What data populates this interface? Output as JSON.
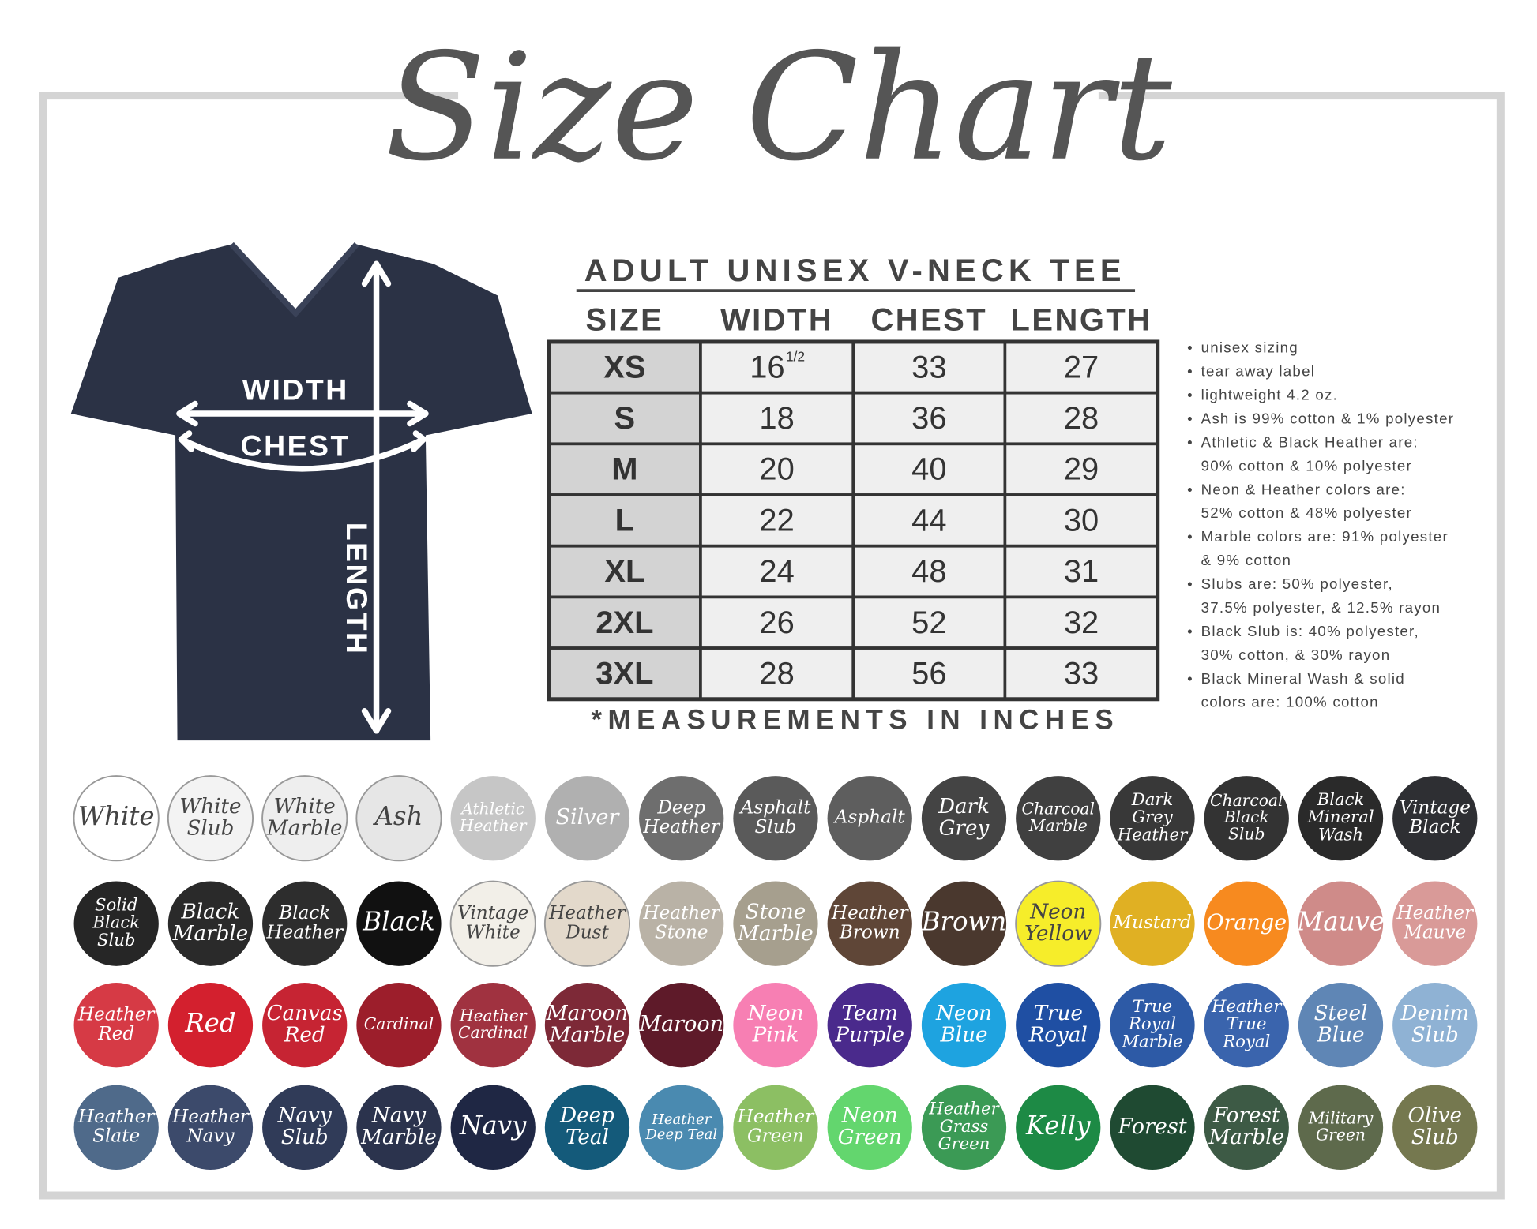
{
  "title": "Size Chart",
  "shirt": {
    "width_label": "WIDTH",
    "chest_label": "CHEST",
    "length_label": "LENGTH"
  },
  "table": {
    "heading": "ADULT UNISEX V-NECK TEE",
    "columns": [
      "SIZE",
      "WIDTH",
      "CHEST",
      "LENGTH"
    ],
    "rows": [
      {
        "size": "XS",
        "width": "16",
        "width_fraction": "1/2",
        "chest": "33",
        "length": "27"
      },
      {
        "size": "S",
        "width": "18",
        "chest": "36",
        "length": "28"
      },
      {
        "size": "M",
        "width": "20",
        "chest": "40",
        "length": "29"
      },
      {
        "size": "L",
        "width": "22",
        "chest": "44",
        "length": "30"
      },
      {
        "size": "XL",
        "width": "24",
        "chest": "48",
        "length": "31"
      },
      {
        "size": "2XL",
        "width": "26",
        "chest": "52",
        "length": "32"
      },
      {
        "size": "3XL",
        "width": "28",
        "chest": "56",
        "length": "33"
      }
    ],
    "footnote": "*MEASUREMENTS IN INCHES"
  },
  "notes": [
    [
      "unisex sizing"
    ],
    [
      "tear away label"
    ],
    [
      "lightweight 4.2 oz."
    ],
    [
      "Ash is 99% cotton & 1% polyester"
    ],
    [
      "Athletic & Black Heather are:",
      "90% cotton & 10% polyester"
    ],
    [
      "Neon & Heather colors are:",
      "52% cotton & 48% polyester"
    ],
    [
      "Marble colors are: 91% polyester",
      "& 9% cotton"
    ],
    [
      "Slubs are: 50% polyester,",
      "37.5% polyester, & 12.5% rayon"
    ],
    [
      "Black Slub is: 40% polyester,",
      "30% cotton, & 30% rayon"
    ],
    [
      "Black Mineral Wash & solid",
      "colors are: 100% cotton"
    ]
  ],
  "swatches": [
    {
      "lines": [
        "White"
      ],
      "color": "#ffffff"
    },
    {
      "lines": [
        "White",
        "Slub"
      ],
      "color": "#f3f3f3"
    },
    {
      "lines": [
        "White",
        "Marble"
      ],
      "color": "#eeeeee"
    },
    {
      "lines": [
        "Ash"
      ],
      "color": "#e6e6e6"
    },
    {
      "lines": [
        "Athletic",
        "Heather"
      ],
      "color": "#c6c6c6"
    },
    {
      "lines": [
        "Silver"
      ],
      "color": "#b0b0b0"
    },
    {
      "lines": [
        "Deep",
        "Heather"
      ],
      "color": "#6e6e6e"
    },
    {
      "lines": [
        "Asphalt",
        "Slub"
      ],
      "color": "#5a5a5a"
    },
    {
      "lines": [
        "Asphalt"
      ],
      "color": "#5e5e5e"
    },
    {
      "lines": [
        "Dark",
        "Grey"
      ],
      "color": "#444444"
    },
    {
      "lines": [
        "Charcoal",
        "Marble"
      ],
      "color": "#404040"
    },
    {
      "lines": [
        "Dark",
        "Grey",
        "Heather"
      ],
      "color": "#383838"
    },
    {
      "lines": [
        "Charcoal",
        "Black",
        "Slub"
      ],
      "color": "#333333"
    },
    {
      "lines": [
        "Black",
        "Mineral",
        "Wash"
      ],
      "color": "#2a2a2a"
    },
    {
      "lines": [
        "Vintage",
        "Black"
      ],
      "color": "#2e2f33"
    },
    {
      "lines": [
        "Solid",
        "Black",
        "Slub"
      ],
      "color": "#262626"
    },
    {
      "lines": [
        "Black",
        "Marble"
      ],
      "color": "#2a2a2a"
    },
    {
      "lines": [
        "Black",
        "Heather"
      ],
      "color": "#2d2d2d"
    },
    {
      "lines": [
        "Black"
      ],
      "color": "#111111"
    },
    {
      "lines": [
        "Vintage",
        "White"
      ],
      "color": "#f2efe8"
    },
    {
      "lines": [
        "Heather",
        "Dust"
      ],
      "color": "#e3d9cb"
    },
    {
      "lines": [
        "Heather",
        "Stone"
      ],
      "color": "#b9b2a6"
    },
    {
      "lines": [
        "Stone",
        "Marble"
      ],
      "color": "#a69f8e"
    },
    {
      "lines": [
        "Heather",
        "Brown"
      ],
      "color": "#5f4637"
    },
    {
      "lines": [
        "Brown"
      ],
      "color": "#4a382e"
    },
    {
      "lines": [
        "Neon",
        "Yellow"
      ],
      "color": "#f6ed2a"
    },
    {
      "lines": [
        "Mustard"
      ],
      "color": "#e0b023"
    },
    {
      "lines": [
        "Orange"
      ],
      "color": "#f78a1f"
    },
    {
      "lines": [
        "Mauve"
      ],
      "color": "#cf8b89"
    },
    {
      "lines": [
        "Heather",
        "Mauve"
      ],
      "color": "#d99a98"
    },
    {
      "lines": [
        "Heather",
        "Red"
      ],
      "color": "#d63a45"
    },
    {
      "lines": [
        "Red"
      ],
      "color": "#d3202e"
    },
    {
      "lines": [
        "Canvas",
        "Red"
      ],
      "color": "#c62433"
    },
    {
      "lines": [
        "Cardinal"
      ],
      "color": "#9c1e2b"
    },
    {
      "lines": [
        "Heather",
        "Cardinal"
      ],
      "color": "#a03240"
    },
    {
      "lines": [
        "Maroon",
        "Marble"
      ],
      "color": "#7d2937"
    },
    {
      "lines": [
        "Maroon"
      ],
      "color": "#5e1a29"
    },
    {
      "lines": [
        "Neon",
        "Pink"
      ],
      "color": "#f77fb3"
    },
    {
      "lines": [
        "Team",
        "Purple"
      ],
      "color": "#4a2a8c"
    },
    {
      "lines": [
        "Neon",
        "Blue"
      ],
      "color": "#1ea3e0"
    },
    {
      "lines": [
        "True",
        "Royal"
      ],
      "color": "#1f4fa3"
    },
    {
      "lines": [
        "True",
        "Royal",
        "Marble"
      ],
      "color": "#2d5aa6"
    },
    {
      "lines": [
        "Heather",
        "True",
        "Royal"
      ],
      "color": "#3a64ad"
    },
    {
      "lines": [
        "Steel",
        "Blue"
      ],
      "color": "#5f86b5"
    },
    {
      "lines": [
        "Denim",
        "Slub"
      ],
      "color": "#8fb2d4"
    },
    {
      "lines": [
        "Heather",
        "Slate"
      ],
      "color": "#4f6a8a"
    },
    {
      "lines": [
        "Heather",
        "Navy"
      ],
      "color": "#3c4a6b"
    },
    {
      "lines": [
        "Navy",
        "Slub"
      ],
      "color": "#303b58"
    },
    {
      "lines": [
        "Navy",
        "Marble"
      ],
      "color": "#2b334d"
    },
    {
      "lines": [
        "Navy"
      ],
      "color": "#1f2744"
    },
    {
      "lines": [
        "Deep",
        "Teal"
      ],
      "color": "#145a7a"
    },
    {
      "lines": [
        "Heather",
        "Deep Teal"
      ],
      "color": "#4a8ab0"
    },
    {
      "lines": [
        "Heather",
        "Green"
      ],
      "color": "#8cbf63"
    },
    {
      "lines": [
        "Neon",
        "Green"
      ],
      "color": "#63d66e"
    },
    {
      "lines": [
        "Heather",
        "Grass",
        "Green"
      ],
      "color": "#3b9a55"
    },
    {
      "lines": [
        "Kelly"
      ],
      "color": "#1d8a45"
    },
    {
      "lines": [
        "Forest"
      ],
      "color": "#1f4a32"
    },
    {
      "lines": [
        "Forest",
        "Marble"
      ],
      "color": "#3d5a45"
    },
    {
      "lines": [
        "Military",
        "Green"
      ],
      "color": "#5e6a4c"
    },
    {
      "lines": [
        "Olive",
        "Slub"
      ],
      "color": "#75784f"
    }
  ]
}
